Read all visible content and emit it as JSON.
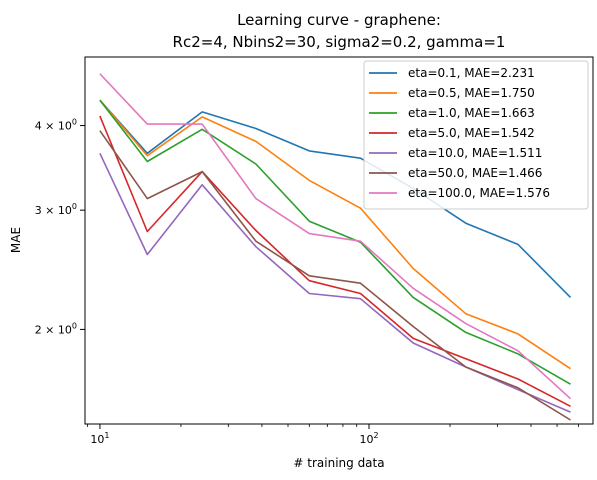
{
  "chart_data": {
    "type": "line",
    "title": "Learning curve - graphene:",
    "subtitle": "Rc2=4, Nbins2=30, sigma2=0.2, gamma=1",
    "xlabel": "# training data",
    "ylabel": "MAE",
    "xscale": "log",
    "yscale": "log",
    "xlim": [
      8.8,
      680
    ],
    "ylim": [
      1.45,
      5.05
    ],
    "x": [
      10,
      15,
      24,
      38,
      60,
      93,
      146,
      229,
      358,
      561
    ],
    "x_major_ticks": [
      {
        "value": 10,
        "base": "10",
        "exp": "1"
      },
      {
        "value": 100,
        "base": "10",
        "exp": "2"
      }
    ],
    "y_major_ticks": [
      {
        "value": 2,
        "mant": "2 × 10",
        "exp": "0"
      },
      {
        "value": 3,
        "mant": "3 × 10",
        "exp": "0"
      },
      {
        "value": 4,
        "mant": "4 × 10",
        "exp": "0"
      }
    ],
    "legend_position": "upper right",
    "series": [
      {
        "name": "eta=0.1, MAE=2.231",
        "color": "#1f77b4",
        "values": [
          4.36,
          3.64,
          4.19,
          3.96,
          3.67,
          3.58,
          3.23,
          2.87,
          2.67,
          2.23
        ]
      },
      {
        "name": "eta=0.5, MAE=1.750",
        "color": "#ff7f0e",
        "values": [
          4.36,
          3.61,
          4.12,
          3.79,
          3.32,
          3.02,
          2.46,
          2.11,
          1.97,
          1.75
        ]
      },
      {
        "name": "eta=1.0, MAE=1.663",
        "color": "#2ca02c",
        "values": [
          4.36,
          3.54,
          3.95,
          3.51,
          2.89,
          2.69,
          2.23,
          1.98,
          1.84,
          1.66
        ]
      },
      {
        "name": "eta=5.0, MAE=1.542",
        "color": "#d62728",
        "values": [
          4.13,
          2.79,
          3.42,
          2.8,
          2.36,
          2.26,
          1.94,
          1.81,
          1.69,
          1.54
        ]
      },
      {
        "name": "eta=10.0, MAE=1.511",
        "color": "#9467bd",
        "values": [
          3.64,
          2.58,
          3.27,
          2.65,
          2.26,
          2.22,
          1.91,
          1.76,
          1.63,
          1.51
        ]
      },
      {
        "name": "eta=50.0, MAE=1.466",
        "color": "#8c564b",
        "values": [
          3.93,
          3.12,
          3.42,
          2.7,
          2.4,
          2.34,
          2.02,
          1.76,
          1.64,
          1.47
        ]
      },
      {
        "name": "eta=100.0, MAE=1.576",
        "color": "#e377c2",
        "values": [
          4.77,
          4.02,
          4.02,
          3.12,
          2.77,
          2.7,
          2.3,
          2.04,
          1.86,
          1.58
        ]
      }
    ]
  }
}
